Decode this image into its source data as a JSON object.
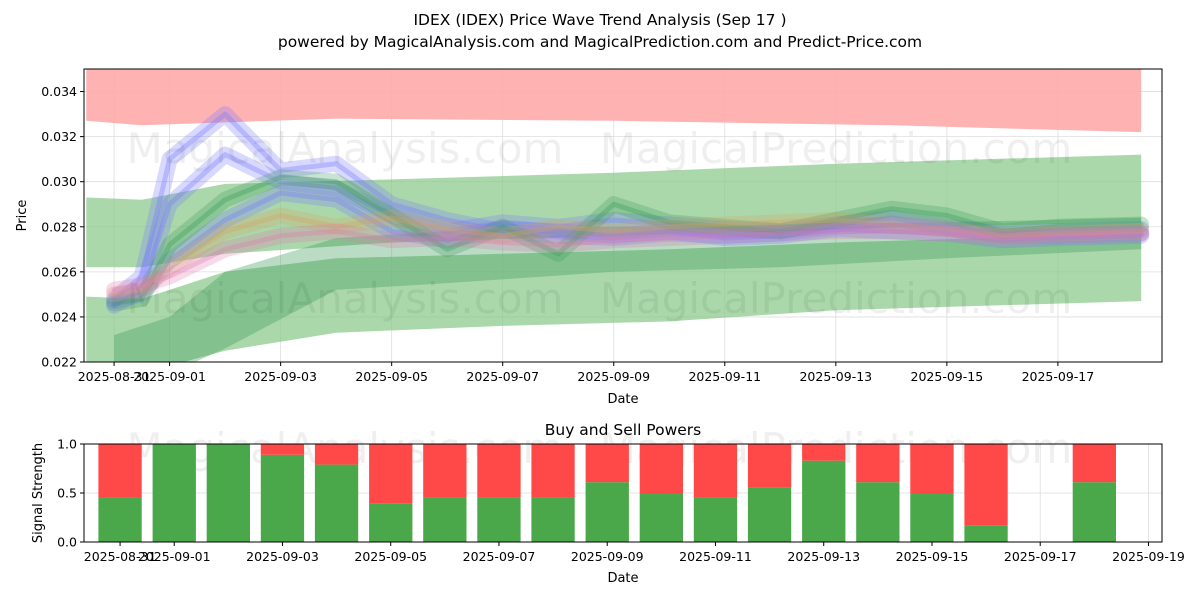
{
  "title": "IDEX (IDEX) Price Wave Trend Analysis (Sep 17 )",
  "subtitle": "powered by MagicalAnalysis.com and MagicalPrediction.com and Predict-Price.com",
  "watermarks": [
    "MagicalAnalysis.com",
    "MagicalPrediction.com"
  ],
  "colors": {
    "buy": "#4aa84a",
    "sell": "#ff4848",
    "upper_band": "#ffaaaa",
    "green_band": "#88c788",
    "wave_blue": "#7777ff",
    "wave_green": "#3a9a5a",
    "wave_orange": "#d6a060",
    "wave_pink": "#e07ab0"
  },
  "chart_data": [
    {
      "type": "area",
      "title": "IDEX (IDEX) Price Wave Trend Analysis (Sep 17 )",
      "xlabel": "Date",
      "ylabel": "Price",
      "xlim": [
        "2025-08-30T11:00",
        "2025-09-18T21:00"
      ],
      "ylim": [
        0.022,
        0.035
      ],
      "x_ticks": [
        "2025-08-31",
        "2025-09-01",
        "2025-09-03",
        "2025-09-05",
        "2025-09-07",
        "2025-09-09",
        "2025-09-11",
        "2025-09-13",
        "2025-09-15",
        "2025-09-17"
      ],
      "x_tick_labels": [
        "2025-08-31",
        "2025-09-01",
        "2025-09-03",
        "2025-09-05",
        "2025-09-07",
        "2025-09-09",
        "2025-09-11",
        "2025-09-13",
        "2025-09-15",
        "2025-09-17"
      ],
      "y_ticks": [
        0.022,
        0.024,
        0.026,
        0.028,
        0.03,
        0.032,
        0.034
      ],
      "y_tick_labels": [
        "0.022",
        "0.024",
        "0.026",
        "0.028",
        "0.030",
        "0.032",
        "0.034"
      ],
      "grid": true,
      "bands": [
        {
          "color": "upper_band",
          "x": [
            "2025-08-30T12:00",
            "2025-08-31T12:00",
            "2025-09-04T00:00",
            "2025-09-09T00:00",
            "2025-09-14T00:00",
            "2025-09-18T12:00"
          ],
          "lower": [
            0.0327,
            0.0325,
            0.0328,
            0.0327,
            0.0325,
            0.0322
          ],
          "upper": [
            0.035,
            0.035,
            0.035,
            0.035,
            0.035,
            0.035
          ]
        },
        {
          "color": "green_band",
          "x": [
            "2025-08-30T12:00",
            "2025-08-31T12:00",
            "2025-09-02T00:00",
            "2025-09-05T00:00",
            "2025-09-09T00:00",
            "2025-09-13T00:00",
            "2025-09-18T12:00"
          ],
          "lower": [
            0.0262,
            0.0262,
            0.0268,
            0.0273,
            0.0276,
            0.0279,
            0.0282
          ],
          "upper": [
            0.0293,
            0.0292,
            0.0299,
            0.0301,
            0.0304,
            0.0308,
            0.0312
          ]
        },
        {
          "color": "green_band",
          "x": [
            "2025-08-30T12:00",
            "2025-08-31T12:00",
            "2025-09-02T00:00",
            "2025-09-04T00:00",
            "2025-09-07T00:00",
            "2025-09-10T00:00",
            "2025-09-13T00:00",
            "2025-09-18T12:00"
          ],
          "lower": [
            0.0215,
            0.0215,
            0.0225,
            0.0233,
            0.0236,
            0.0238,
            0.0243,
            0.0247
          ],
          "upper": [
            0.0249,
            0.0248,
            0.026,
            0.0266,
            0.0268,
            0.027,
            0.0273,
            0.0277
          ]
        },
        {
          "color": "wave_green",
          "x": [
            "2025-08-31T00:00",
            "2025-09-01T00:00",
            "2025-09-02T00:00",
            "2025-09-04T00:00",
            "2025-09-06T00:00",
            "2025-09-09T00:00",
            "2025-09-12T00:00",
            "2025-09-15T00:00",
            "2025-09-18T12:00"
          ],
          "lower": [
            0.0215,
            0.0215,
            0.0226,
            0.0252,
            0.0255,
            0.026,
            0.0262,
            0.0266,
            0.027
          ],
          "upper": [
            0.0232,
            0.024,
            0.026,
            0.0275,
            0.0278,
            0.028,
            0.0281,
            0.0282,
            0.0284
          ]
        }
      ],
      "series": [
        {
          "color": "wave_blue",
          "x": [
            "2025-08-31T00:00",
            "2025-08-31T12:00",
            "2025-09-01T00:00",
            "2025-09-02T00:00",
            "2025-09-03T00:00",
            "2025-09-04T00:00",
            "2025-09-05T00:00",
            "2025-09-06T00:00",
            "2025-09-07T00:00",
            "2025-09-08T00:00",
            "2025-09-09T00:00",
            "2025-09-10T00:00",
            "2025-09-11T00:00",
            "2025-09-12T00:00",
            "2025-09-13T00:00",
            "2025-09-14T00:00",
            "2025-09-15T00:00",
            "2025-09-16T00:00",
            "2025-09-17T00:00",
            "2025-09-18T12:00"
          ],
          "y": [
            0.0248,
            0.0258,
            0.031,
            0.033,
            0.0305,
            0.0308,
            0.029,
            0.0283,
            0.0278,
            0.0276,
            0.0275,
            0.0277,
            0.0276,
            0.0277,
            0.028,
            0.0281,
            0.0279,
            0.0276,
            0.0276,
            0.0277
          ]
        },
        {
          "color": "wave_blue",
          "x": [
            "2025-08-31T00:00",
            "2025-08-31T12:00",
            "2025-09-01T00:00",
            "2025-09-02T00:00",
            "2025-09-03T00:00",
            "2025-09-04T00:00",
            "2025-09-05T00:00",
            "2025-09-06T00:00",
            "2025-09-07T00:00",
            "2025-09-08T00:00",
            "2025-09-09T00:00",
            "2025-09-10T00:00",
            "2025-09-11T00:00",
            "2025-09-12T00:00",
            "2025-09-13T00:00",
            "2025-09-14T00:00",
            "2025-09-15T00:00",
            "2025-09-16T00:00",
            "2025-09-17T00:00",
            "2025-09-18T12:00"
          ],
          "y": [
            0.0245,
            0.0252,
            0.029,
            0.0312,
            0.03,
            0.0297,
            0.0285,
            0.0278,
            0.0282,
            0.028,
            0.0283,
            0.0281,
            0.0279,
            0.0278,
            0.0281,
            0.0284,
            0.028,
            0.0277,
            0.0278,
            0.0279
          ]
        },
        {
          "color": "wave_blue",
          "x": [
            "2025-08-31T00:00",
            "2025-08-31T12:00",
            "2025-09-01T00:00",
            "2025-09-02T00:00",
            "2025-09-03T00:00",
            "2025-09-04T00:00",
            "2025-09-05T00:00",
            "2025-09-06T00:00",
            "2025-09-07T00:00",
            "2025-09-08T00:00",
            "2025-09-09T00:00",
            "2025-09-10T00:00",
            "2025-09-11T00:00",
            "2025-09-12T00:00",
            "2025-09-13T00:00",
            "2025-09-14T00:00",
            "2025-09-15T00:00",
            "2025-09-16T00:00",
            "2025-09-17T00:00",
            "2025-09-18T12:00"
          ],
          "y": [
            0.0247,
            0.025,
            0.0265,
            0.0283,
            0.0295,
            0.0292,
            0.0278,
            0.0274,
            0.0279,
            0.0278,
            0.0276,
            0.0278,
            0.0275,
            0.0276,
            0.0279,
            0.0278,
            0.0277,
            0.0274,
            0.0275,
            0.0276
          ]
        },
        {
          "color": "wave_green",
          "x": [
            "2025-08-31T00:00",
            "2025-08-31T12:00",
            "2025-09-01T00:00",
            "2025-09-02T00:00",
            "2025-09-03T00:00",
            "2025-09-04T00:00",
            "2025-09-05T00:00",
            "2025-09-06T00:00",
            "2025-09-07T00:00",
            "2025-09-08T00:00",
            "2025-09-09T00:00",
            "2025-09-10T00:00",
            "2025-09-11T00:00",
            "2025-09-12T00:00",
            "2025-09-13T00:00",
            "2025-09-14T00:00",
            "2025-09-15T00:00",
            "2025-09-16T00:00",
            "2025-09-17T00:00",
            "2025-09-18T12:00"
          ],
          "y": [
            0.0246,
            0.0248,
            0.0272,
            0.0292,
            0.0302,
            0.03,
            0.0285,
            0.027,
            0.028,
            0.0268,
            0.029,
            0.0282,
            0.028,
            0.0278,
            0.0283,
            0.0288,
            0.0285,
            0.0278,
            0.028,
            0.0281
          ]
        },
        {
          "color": "wave_orange",
          "x": [
            "2025-08-31T00:00",
            "2025-08-31T12:00",
            "2025-09-01T00:00",
            "2025-09-02T00:00",
            "2025-09-03T00:00",
            "2025-09-04T00:00",
            "2025-09-05T00:00",
            "2025-09-06T00:00",
            "2025-09-07T00:00",
            "2025-09-08T00:00",
            "2025-09-09T00:00",
            "2025-09-10T00:00",
            "2025-09-11T00:00",
            "2025-09-12T00:00",
            "2025-09-13T00:00",
            "2025-09-14T00:00",
            "2025-09-15T00:00",
            "2025-09-16T00:00",
            "2025-09-17T00:00",
            "2025-09-18T12:00"
          ],
          "y": [
            0.025,
            0.0252,
            0.0262,
            0.0278,
            0.0285,
            0.028,
            0.0284,
            0.0279,
            0.0276,
            0.028,
            0.0278,
            0.028,
            0.0281,
            0.0282,
            0.0283,
            0.0281,
            0.0279,
            0.0276,
            0.0277,
            0.0278
          ]
        },
        {
          "color": "wave_pink",
          "x": [
            "2025-08-31T00:00",
            "2025-08-31T12:00",
            "2025-09-01T00:00",
            "2025-09-02T00:00",
            "2025-09-03T00:00",
            "2025-09-04T00:00",
            "2025-09-05T00:00",
            "2025-09-06T00:00",
            "2025-09-07T00:00",
            "2025-09-08T00:00",
            "2025-09-09T00:00",
            "2025-09-10T00:00",
            "2025-09-11T00:00",
            "2025-09-12T00:00",
            "2025-09-13T00:00",
            "2025-09-14T00:00",
            "2025-09-15T00:00",
            "2025-09-16T00:00",
            "2025-09-17T00:00",
            "2025-09-18T12:00"
          ],
          "y": [
            0.0252,
            0.0254,
            0.0258,
            0.027,
            0.0276,
            0.0278,
            0.0274,
            0.0275,
            0.0273,
            0.0272,
            0.0274,
            0.0275,
            0.0276,
            0.0277,
            0.0278,
            0.0278,
            0.0277,
            0.0275,
            0.0276,
            0.0277
          ]
        }
      ]
    },
    {
      "type": "bar",
      "title": "Buy and Sell Powers",
      "xlabel": "Date",
      "ylabel": "Signal Strength",
      "xlim": [
        "2025-08-30T08:00",
        "2025-09-19T06:00"
      ],
      "ylim": [
        0,
        1
      ],
      "x_ticks": [
        "2025-08-31",
        "2025-09-01",
        "2025-09-03",
        "2025-09-05",
        "2025-09-07",
        "2025-09-09",
        "2025-09-11",
        "2025-09-13",
        "2025-09-15",
        "2025-09-17",
        "2025-09-19"
      ],
      "x_tick_labels": [
        "2025-08-31",
        "2025-09-01",
        "2025-09-03",
        "2025-09-05",
        "2025-09-07",
        "2025-09-09",
        "2025-09-11",
        "2025-09-13",
        "2025-09-15",
        "2025-09-17",
        "2025-09-19"
      ],
      "y_ticks": [
        0.0,
        0.5,
        1.0
      ],
      "y_tick_labels": [
        "0.0",
        "0.5",
        "1.0"
      ],
      "grid": true,
      "categories": [
        "2025-08-31",
        "2025-09-01",
        "2025-09-02",
        "2025-09-03",
        "2025-09-04",
        "2025-09-05",
        "2025-09-06",
        "2025-09-07",
        "2025-09-08",
        "2025-09-09",
        "2025-09-10",
        "2025-09-11",
        "2025-09-12",
        "2025-09-13",
        "2025-09-14",
        "2025-09-15",
        "2025-09-16",
        "2025-09-17",
        "2025-09-18"
      ],
      "series": [
        {
          "color": "buy",
          "values": [
            0.45,
            1.0,
            1.0,
            0.89,
            0.79,
            0.39,
            0.45,
            0.45,
            0.45,
            0.61,
            0.5,
            0.45,
            0.56,
            0.83,
            0.61,
            0.5,
            0.17,
            0.0,
            0.61
          ]
        },
        {
          "color": "sell",
          "values": [
            0.55,
            0.0,
            0.0,
            0.11,
            0.21,
            0.61,
            0.55,
            0.55,
            0.55,
            0.39,
            0.5,
            0.55,
            0.44,
            0.17,
            0.39,
            0.5,
            0.83,
            0.0,
            0.39
          ]
        }
      ]
    }
  ]
}
